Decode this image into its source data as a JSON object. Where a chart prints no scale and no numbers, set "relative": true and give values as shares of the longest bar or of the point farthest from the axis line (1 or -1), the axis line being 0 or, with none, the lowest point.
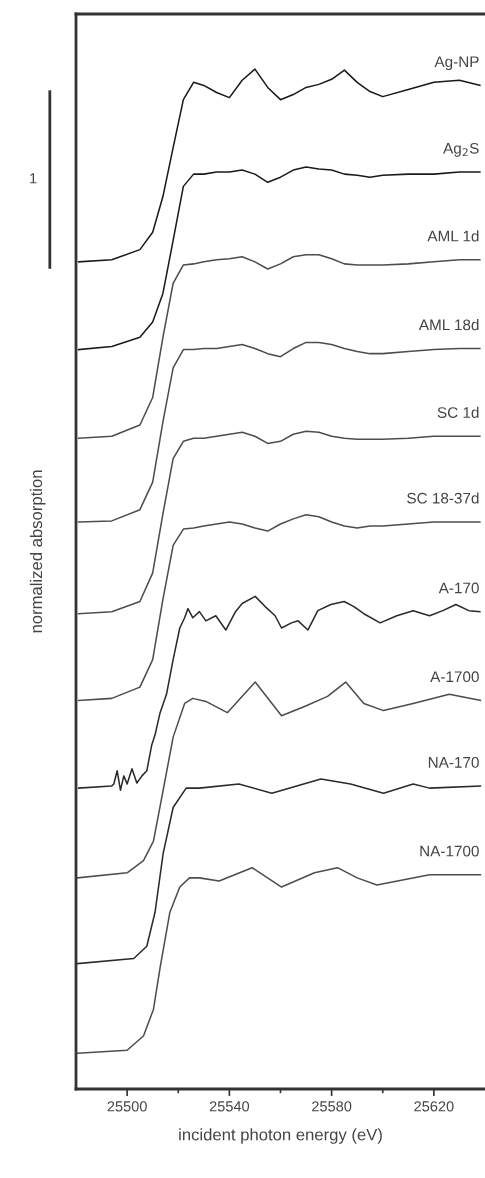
{
  "chart_data": {
    "type": "line",
    "xlabel": "incident photon energy (eV)",
    "ylabel": "normalized absorption",
    "relative": true,
    "x": [
      25481,
      25494,
      25505,
      25510,
      25514,
      25518,
      25522,
      25526,
      25530,
      25535,
      25540,
      25545,
      25550,
      25555,
      25560,
      25565,
      25570,
      25575,
      25580,
      25585,
      25590,
      25595,
      25600,
      25610,
      25620,
      25630,
      25638
    ],
    "series": [
      {
        "name": "Ag-NP",
        "color": "#1a1a1a",
        "values": [
          0.811,
          0.813,
          0.823,
          0.84,
          0.875,
          0.923,
          0.97,
          0.987,
          0.984,
          0.977,
          0.972,
          0.989,
          1,
          0.982,
          0.97,
          0.975,
          0.982,
          0.985,
          0.99,
          0.999,
          0.987,
          0.978,
          0.973,
          0.98,
          0.987,
          0.989,
          0.984
        ]
      },
      {
        "name": "Ag$_{2}$S",
        "color": "#1a1a1a",
        "values": [
          0.725,
          0.728,
          0.737,
          0.752,
          0.78,
          0.832,
          0.885,
          0.897,
          0.897,
          0.899,
          0.899,
          0.901,
          0.897,
          0.889,
          0.894,
          0.901,
          0.904,
          0.902,
          0.901,
          0.897,
          0.896,
          0.894,
          0.896,
          0.897,
          0.897,
          0.899,
          0.899
        ]
      },
      {
        "name": "AML 1d",
        "color": "#4d4d4d",
        "values": [
          0.638,
          0.64,
          0.651,
          0.678,
          0.737,
          0.79,
          0.808,
          0.809,
          0.811,
          0.813,
          0.814,
          0.816,
          0.811,
          0.804,
          0.809,
          0.816,
          0.818,
          0.818,
          0.814,
          0.809,
          0.808,
          0.808,
          0.808,
          0.809,
          0.811,
          0.813,
          0.813
        ]
      },
      {
        "name": "AML 18d",
        "color": "#4d4d4d",
        "values": [
          0.556,
          0.557,
          0.568,
          0.595,
          0.654,
          0.707,
          0.725,
          0.725,
          0.726,
          0.726,
          0.728,
          0.73,
          0.726,
          0.721,
          0.718,
          0.726,
          0.732,
          0.732,
          0.73,
          0.726,
          0.723,
          0.721,
          0.721,
          0.723,
          0.725,
          0.726,
          0.726
        ]
      },
      {
        "name": "SC 1d",
        "color": "#4d4d4d",
        "values": [
          0.466,
          0.468,
          0.478,
          0.506,
          0.564,
          0.618,
          0.635,
          0.638,
          0.638,
          0.64,
          0.642,
          0.644,
          0.64,
          0.633,
          0.635,
          0.642,
          0.645,
          0.644,
          0.64,
          0.638,
          0.637,
          0.637,
          0.637,
          0.638,
          0.64,
          0.64,
          0.64
        ]
      },
      {
        "name": "SC 18-37d",
        "color": "#4d4d4d",
        "values": [
          0.381,
          0.383,
          0.394,
          0.421,
          0.48,
          0.533,
          0.549,
          0.55,
          0.552,
          0.554,
          0.556,
          0.554,
          0.55,
          0.547,
          0.554,
          0.559,
          0.563,
          0.561,
          0.556,
          0.552,
          0.55,
          0.552,
          0.552,
          0.554,
          0.556,
          0.556,
          0.556
        ]
      },
      {
        "name": "A-170",
        "color": "#2a2a2a",
        "x": [
          25481.0,
          25493.9,
          25494.8,
          25496.1,
          25497.4,
          25498.7,
          25500.0,
          25501.9,
          25503.8,
          25505.8,
          25507.7,
          25509.6,
          25510.9,
          25512.9,
          25515.4,
          25518.0,
          25520.6,
          25522.5,
          25523.8,
          25525.7,
          25528.3,
          25530.8,
          25534.7,
          25538.6,
          25542.4,
          25545.0,
          25550.1,
          25554.0,
          25557.9,
          25560.4,
          25564.3,
          25566.9,
          25570.7,
          25574.6,
          25579.7,
          25584.9,
          25588.7,
          25592.6,
          25599.0,
          25605.5,
          25611.9,
          25618.3,
          25623.5,
          25628.6,
          25633.7,
          25638.0
        ],
        "values": [
          0.295,
          0.297,
          0.299,
          0.312,
          0.293,
          0.307,
          0.299,
          0.314,
          0.3,
          0.307,
          0.312,
          0.337,
          0.347,
          0.369,
          0.387,
          0.421,
          0.452,
          0.462,
          0.471,
          0.462,
          0.468,
          0.459,
          0.464,
          0.45,
          0.468,
          0.476,
          0.483,
          0.473,
          0.464,
          0.452,
          0.457,
          0.459,
          0.45,
          0.469,
          0.475,
          0.478,
          0.473,
          0.466,
          0.457,
          0.464,
          0.469,
          0.464,
          0.469,
          0.475,
          0.469,
          0.468
        ]
      },
      {
        "name": "A-1700",
        "color": "#4d4d4d",
        "x": [
          25480.7,
          25500.0,
          25506.4,
          25510.3,
          25514.1,
          25518.0,
          25522.5,
          25525.7,
          25530.8,
          25539.2,
          25550.1,
          25560.4,
          25569.4,
          25578.4,
          25585.5,
          25592.6,
          25600.3,
          25611.9,
          25626.0,
          25638.2
        ],
        "values": [
          0.207,
          0.212,
          0.224,
          0.243,
          0.293,
          0.345,
          0.378,
          0.383,
          0.38,
          0.369,
          0.399,
          0.366,
          0.375,
          0.385,
          0.399,
          0.378,
          0.371,
          0.378,
          0.387,
          0.381
        ]
      },
      {
        "name": "NA-170",
        "color": "#2a2a2a",
        "x": [
          25480.7,
          25502.6,
          25507.7,
          25510.9,
          25514.1,
          25518.0,
          25523.1,
          25528.3,
          25543.7,
          25556.6,
          25575.8,
          25587.4,
          25600.3,
          25611.9,
          25618.3,
          25638.2
        ],
        "values": [
          0.123,
          0.128,
          0.14,
          0.173,
          0.231,
          0.276,
          0.295,
          0.295,
          0.299,
          0.29,
          0.304,
          0.299,
          0.29,
          0.299,
          0.295,
          0.297
        ]
      },
      {
        "name": "NA-1700",
        "color": "#4d4d4d",
        "x": [
          25480.7,
          25500.0,
          25506.4,
          25510.3,
          25512.9,
          25516.7,
          25520.6,
          25524.4,
          25528.3,
          25536.0,
          25548.9,
          25560.4,
          25573.3,
          25582.3,
          25590.0,
          25597.7,
          25618.3,
          25638.2
        ],
        "values": [
          0.035,
          0.038,
          0.052,
          0.078,
          0.119,
          0.173,
          0.198,
          0.207,
          0.207,
          0.204,
          0.217,
          0.198,
          0.212,
          0.217,
          0.207,
          0.2,
          0.21,
          0.21
        ]
      }
    ],
    "xlim": [
      25480,
      25640
    ],
    "xticks": [
      25500,
      {
        "value": 25520,
        "label": null
      },
      25540,
      {
        "value": 25560,
        "label": null
      },
      25580,
      {
        "value": 25600,
        "label": null
      },
      25620
    ],
    "annotations": [
      "1"
    ],
    "line_style": "solid",
    "marker": "none"
  }
}
